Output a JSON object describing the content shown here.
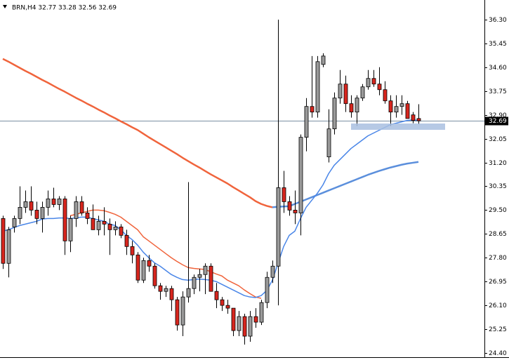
{
  "chart_data": {
    "type": "candlestick",
    "title": "BRN,H4  32.77 33.28 32.56 32.69",
    "open": [
      29.2,
      27.6,
      28.9,
      29.2,
      29.6,
      29.8,
      29.5,
      29.2,
      29.6,
      29.9,
      29.7,
      29.9,
      28.4,
      29.2,
      29.8,
      29.4,
      29.2,
      28.8,
      29.1,
      29.0,
      28.8,
      28.9,
      28.6,
      28.2,
      27.9,
      27.0,
      27.7,
      27.5,
      26.8,
      26.6,
      26.7,
      26.3,
      25.4,
      26.4,
      26.7,
      27.1,
      27.2,
      27.5,
      26.6,
      26.3,
      26.1,
      26.0,
      25.2,
      25.7,
      25.0,
      25.7,
      25.5,
      26.2,
      27.1,
      27.5,
      30.3,
      29.8,
      29.5,
      29.4,
      32.1,
      33.2,
      33.0,
      34.7,
      31.4,
      32.4,
      33.5,
      34.0,
      33.3,
      33.0,
      33.5,
      33.9,
      34.2,
      34.0,
      33.8,
      33.4,
      33.0,
      33.2,
      33.3,
      32.9,
      32.77
    ],
    "high": [
      29.3,
      28.9,
      29.3,
      30.35,
      30.2,
      30.35,
      29.8,
      29.8,
      30.2,
      30.3,
      30.0,
      30.0,
      29.3,
      30.0,
      30.0,
      29.6,
      29.7,
      29.3,
      29.6,
      29.2,
      29.1,
      29.0,
      28.8,
      28.4,
      28.0,
      27.8,
      27.9,
      27.6,
      26.9,
      26.8,
      26.8,
      26.4,
      26.6,
      30.5,
      27.2,
      27.4,
      27.6,
      27.6,
      26.9,
      26.4,
      26.3,
      26.0,
      25.9,
      25.8,
      25.9,
      26.0,
      26.3,
      27.3,
      27.7,
      36.3,
      30.9,
      30.0,
      30.2,
      32.2,
      33.5,
      35.0,
      35.0,
      35.1,
      33.1,
      33.7,
      34.5,
      34.3,
      33.6,
      33.6,
      34.0,
      34.5,
      34.5,
      34.6,
      34.1,
      33.6,
      33.6,
      33.6,
      33.4,
      33.0,
      33.28
    ],
    "low": [
      27.4,
      27.1,
      28.7,
      29.0,
      29.4,
      29.3,
      29.0,
      28.7,
      29.3,
      29.6,
      29.5,
      27.9,
      28.0,
      28.9,
      29.3,
      29.0,
      28.8,
      28.6,
      28.6,
      27.9,
      28.6,
      28.5,
      27.9,
      27.6,
      26.9,
      26.9,
      27.3,
      26.7,
      26.3,
      26.4,
      25.9,
      25.2,
      25.0,
      26.2,
      26.5,
      26.6,
      26.5,
      26.6,
      26.0,
      25.9,
      25.8,
      25.0,
      25.0,
      24.7,
      24.8,
      25.3,
      25.4,
      26.0,
      26.9,
      26.1,
      29.4,
      29.3,
      29.0,
      28.6,
      31.6,
      32.8,
      32.8,
      34.6,
      31.2,
      32.2,
      33.3,
      33.0,
      32.8,
      32.5,
      33.4,
      33.8,
      33.9,
      33.6,
      33.3,
      32.5,
      32.8,
      32.9,
      32.8,
      32.6,
      32.56
    ],
    "close": [
      27.6,
      28.8,
      29.2,
      29.6,
      29.8,
      29.5,
      29.2,
      29.6,
      29.9,
      29.7,
      29.9,
      28.4,
      29.2,
      29.8,
      29.4,
      29.2,
      28.8,
      29.1,
      29.0,
      28.8,
      28.9,
      28.6,
      28.2,
      27.9,
      27.0,
      27.7,
      27.5,
      26.8,
      26.6,
      26.7,
      26.3,
      25.4,
      26.4,
      26.7,
      27.1,
      27.2,
      27.5,
      26.6,
      26.3,
      26.1,
      26.0,
      25.2,
      25.7,
      25.0,
      25.7,
      25.5,
      26.2,
      27.1,
      27.5,
      30.3,
      29.8,
      29.5,
      29.4,
      32.1,
      33.2,
      33.0,
      34.8,
      35.0,
      32.4,
      33.5,
      34.0,
      33.3,
      33.0,
      33.5,
      33.9,
      34.2,
      34.0,
      33.8,
      33.4,
      33.0,
      33.2,
      33.3,
      32.77,
      32.7,
      32.69
    ],
    "up_color": "#9a9a9a",
    "down_color": "#d8261e",
    "lines": [
      {
        "color": "#f0643c",
        "values": [
          34.9,
          34.8,
          34.69,
          34.58,
          34.47,
          34.37,
          34.26,
          34.15,
          34.05,
          33.94,
          33.83,
          33.73,
          33.62,
          33.51,
          33.41,
          33.3,
          33.2,
          33.09,
          32.99,
          32.88,
          32.78,
          32.67,
          32.57,
          32.46,
          32.36,
          32.23,
          32.1,
          31.98,
          31.86,
          31.74,
          31.62,
          31.5,
          31.37,
          31.25,
          31.13,
          31.02,
          30.9,
          30.78,
          30.67,
          30.56,
          30.45,
          30.32,
          30.2,
          30.08,
          29.96,
          29.82,
          29.72,
          29.65,
          29.6,
          null,
          null,
          null,
          null,
          null,
          null,
          null,
          null,
          null,
          null,
          null,
          null,
          null,
          null,
          null,
          null,
          null,
          null,
          null,
          null,
          null,
          null,
          null,
          null,
          null,
          null
        ]
      },
      {
        "color": "#5b8fdc",
        "values": [
          null,
          null,
          null,
          null,
          null,
          null,
          null,
          null,
          null,
          null,
          null,
          null,
          null,
          null,
          null,
          null,
          null,
          null,
          null,
          null,
          null,
          null,
          null,
          null,
          null,
          null,
          null,
          null,
          null,
          null,
          null,
          null,
          null,
          null,
          null,
          null,
          null,
          null,
          null,
          null,
          null,
          null,
          null,
          null,
          null,
          null,
          null,
          null,
          29.6,
          29.62,
          29.63,
          29.64,
          29.72,
          29.8,
          29.88,
          29.96,
          30.04,
          30.12,
          30.2,
          30.28,
          30.36,
          30.44,
          30.52,
          30.6,
          30.68,
          30.76,
          30.83,
          30.9,
          30.96,
          31.02,
          31.07,
          31.12,
          31.16,
          31.19,
          31.22
        ]
      },
      {
        "color": "#f0643c",
        "values": [
          null,
          null,
          null,
          null,
          null,
          null,
          null,
          null,
          null,
          null,
          null,
          null,
          29.3,
          29.35,
          29.4,
          29.45,
          29.5,
          29.5,
          29.48,
          29.42,
          29.35,
          29.25,
          29.1,
          28.95,
          28.8,
          28.55,
          28.4,
          28.25,
          28.1,
          27.95,
          27.8,
          27.67,
          27.55,
          27.45,
          27.42,
          27.4,
          27.38,
          27.3,
          27.22,
          27.15,
          27.0,
          26.9,
          26.8,
          26.65,
          26.52,
          26.4,
          26.35,
          null,
          null,
          null,
          null,
          null,
          null,
          null,
          null,
          null,
          null,
          null,
          null,
          null,
          null,
          null,
          null,
          null,
          null,
          null,
          null,
          null,
          null,
          null,
          null,
          null,
          null,
          null,
          null
        ]
      },
      {
        "color": "#4a86e8",
        "values": [
          28.75,
          28.8,
          28.88,
          28.95,
          29.0,
          29.05,
          29.1,
          29.18,
          29.2,
          29.2,
          29.22,
          29.22,
          29.2,
          29.22,
          29.25,
          29.25,
          29.2,
          29.15,
          29.1,
          29.0,
          28.95,
          28.8,
          28.6,
          28.45,
          28.25,
          28.0,
          27.8,
          27.62,
          27.5,
          27.35,
          27.2,
          27.1,
          27.02,
          27.0,
          27.02,
          27.04,
          27.02,
          27.0,
          26.95,
          26.85,
          26.75,
          26.65,
          26.55,
          26.45,
          26.4,
          26.38,
          26.45,
          26.63,
          27.0,
          27.6,
          28.2,
          28.6,
          28.75,
          29.2,
          29.6,
          29.85,
          30.1,
          30.4,
          30.8,
          31.1,
          31.3,
          31.5,
          31.7,
          31.85,
          32.0,
          32.15,
          32.25,
          32.35,
          32.45,
          32.55,
          32.6,
          32.65,
          32.7,
          32.72,
          32.7
        ]
      }
    ],
    "last_price": 32.69,
    "ylim": [
      24.25,
      37.0
    ],
    "yticks": [
      {
        "value": 36.3,
        "label": "36.30"
      },
      35.45,
      {
        "value": 34.6,
        "label": "34.60"
      },
      33.75,
      {
        "value": 32.9,
        "label": "32.90"
      },
      32.05,
      {
        "value": 31.2,
        "label": "31.20"
      },
      30.35,
      {
        "value": 29.5,
        "label": "29.50"
      },
      28.65,
      {
        "value": 27.8,
        "label": "27.80"
      },
      26.95,
      {
        "value": 26.1,
        "label": "26.10"
      },
      25.25,
      {
        "value": 24.4,
        "label": "24.40"
      }
    ]
  }
}
